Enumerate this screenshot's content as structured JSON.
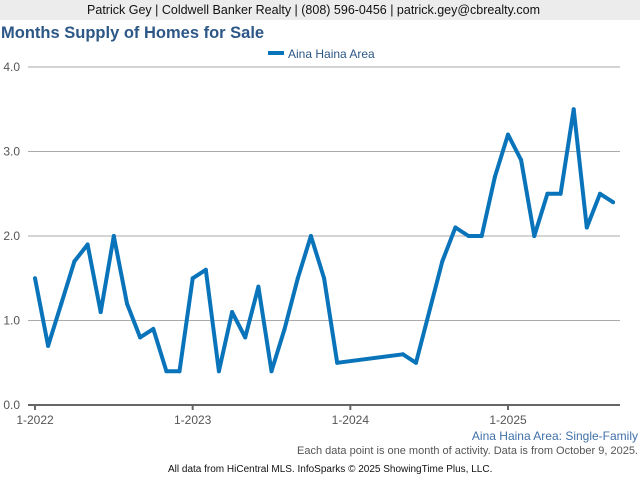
{
  "header": {
    "contact": "Patrick Gey | Coldwell Banker Realty | (808) 596-0456 | patrick.gey@cbrealty.com"
  },
  "footer": {
    "subtitle": "Aina Haina Area: Single-Family",
    "note": "Each data point is one month of activity. Data is from October 9, 2025.",
    "credit": "All data from HiCentral MLS. InfoSparks © 2025 ShowingTime Plus, LLC."
  },
  "colors": {
    "series": "#0a74bb",
    "title": "#2c5786"
  },
  "chart_data": {
    "type": "line",
    "title": "Months Supply of Homes for Sale",
    "xlabel": "",
    "ylabel": "",
    "ylim": [
      0,
      4
    ],
    "yticks": [
      "0.0",
      "1.0",
      "2.0",
      "3.0",
      "4.0"
    ],
    "xticks": [
      "1-2022",
      "1-2023",
      "1-2024",
      "1-2025"
    ],
    "grid": true,
    "legend": "top-center",
    "start": "2022-01",
    "series": [
      {
        "name": "Aina Haina Area",
        "values": [
          1.5,
          0.7,
          1.2,
          1.7,
          1.9,
          1.1,
          2.0,
          1.2,
          0.8,
          0.9,
          0.4,
          0.4,
          1.5,
          1.6,
          0.4,
          1.1,
          0.8,
          1.4,
          0.4,
          0.9,
          1.5,
          2.0,
          1.5,
          0.5,
          null,
          null,
          null,
          null,
          0.6,
          0.5,
          null,
          1.7,
          2.1,
          2.0,
          2.0,
          2.7,
          3.2,
          2.9,
          2.0,
          2.5,
          2.5,
          3.5,
          2.1,
          2.5,
          2.4
        ]
      }
    ]
  }
}
